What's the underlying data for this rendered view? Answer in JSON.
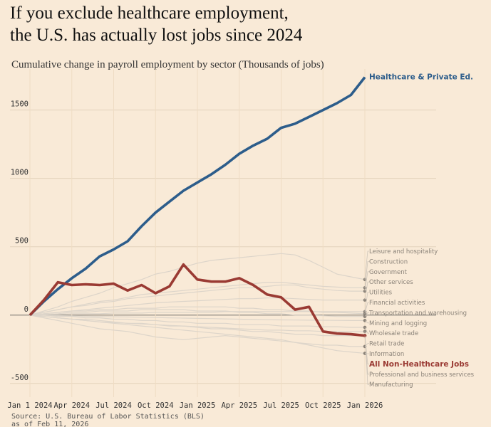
{
  "chart_data": {
    "type": "line",
    "title_lines": [
      "If you exclude healthcare employment,",
      "the U.S. has actually lost jobs since 2024"
    ],
    "subtitle": "Cumulative change in payroll employment by sector (Thousands of jobs)",
    "source_lines": [
      "Source: U.S. Bureau of Labor Statistics (BLS)",
      "as of Feb 11, 2026"
    ],
    "categories": [
      "Jan 1 2024",
      null,
      null,
      "Apr 2024",
      null,
      null,
      "Jul 2024",
      null,
      null,
      "Oct 2024",
      null,
      null,
      "Jan 2025",
      null,
      null,
      "Apr 2025",
      null,
      null,
      "Jul 2025",
      null,
      null,
      "Oct 2025",
      null,
      null,
      "Jan 2026"
    ],
    "ylim": [
      -600,
      1800
    ],
    "yticks": [
      -500,
      0,
      500,
      1000,
      1500
    ],
    "grid": true,
    "series": [
      {
        "name": "Healthcare & Private Ed.",
        "color": "#2d5d8b",
        "values": [
          0,
          100,
          190,
          270,
          340,
          430,
          480,
          540,
          650,
          750,
          830,
          910,
          970,
          1030,
          1100,
          1180,
          1240,
          1290,
          1370,
          1400,
          1450,
          1500,
          1550,
          1610,
          1740
        ]
      },
      {
        "name": "Leisure and hospitality",
        "color": "#ddd5ca",
        "values": [
          0,
          30,
          60,
          100,
          130,
          160,
          200,
          230,
          260,
          300,
          320,
          350,
          380,
          400,
          410,
          420,
          430,
          440,
          450,
          440,
          400,
          350,
          300,
          280,
          260
        ]
      },
      {
        "name": "Construction",
        "color": "#ddd5ca",
        "values": [
          0,
          20,
          40,
          60,
          80,
          100,
          110,
          130,
          150,
          160,
          170,
          180,
          190,
          200,
          210,
          220,
          230,
          240,
          240,
          230,
          220,
          210,
          205,
          200,
          200
        ]
      },
      {
        "name": "Government",
        "color": "#ddd5ca",
        "values": [
          0,
          20,
          40,
          60,
          70,
          90,
          100,
          120,
          130,
          140,
          150,
          160,
          170,
          180,
          190,
          200,
          200,
          210,
          220,
          220,
          200,
          190,
          180,
          175,
          175
        ]
      },
      {
        "name": "Other services",
        "color": "#ddd5ca",
        "values": [
          0,
          10,
          20,
          30,
          40,
          50,
          60,
          70,
          80,
          90,
          95,
          100,
          105,
          110,
          115,
          120,
          120,
          125,
          125,
          120,
          115,
          110,
          110,
          110,
          110
        ]
      },
      {
        "name": "Utilities",
        "color": "#ddd5ca",
        "values": [
          0,
          5,
          5,
          10,
          10,
          10,
          15,
          15,
          15,
          20,
          20,
          20,
          20,
          20,
          25,
          25,
          25,
          25,
          25,
          25,
          25,
          25,
          25,
          25,
          25
        ]
      },
      {
        "name": "Financial activities",
        "color": "#ddd5ca",
        "values": [
          0,
          10,
          20,
          30,
          30,
          40,
          40,
          50,
          50,
          50,
          60,
          60,
          60,
          60,
          60,
          50,
          50,
          40,
          40,
          30,
          30,
          20,
          20,
          15,
          10
        ]
      },
      {
        "name": "Transportation and warehousing",
        "color": "#ddd5ca",
        "values": [
          0,
          5,
          10,
          20,
          20,
          30,
          30,
          30,
          40,
          40,
          40,
          40,
          30,
          30,
          30,
          20,
          20,
          10,
          10,
          0,
          0,
          -5,
          -10,
          -10,
          -10
        ]
      },
      {
        "name": "Mining and logging",
        "color": "#ddd5ca",
        "values": [
          0,
          -2,
          -4,
          -6,
          -8,
          -10,
          -12,
          -14,
          -16,
          -18,
          -20,
          -22,
          -24,
          -26,
          -28,
          -30,
          -32,
          -34,
          -35,
          -36,
          -37,
          -38,
          -39,
          -40,
          -40
        ]
      },
      {
        "name": "Wholesale trade",
        "color": "#ddd5ca",
        "values": [
          0,
          0,
          -10,
          -10,
          -20,
          -20,
          -30,
          -30,
          -40,
          -40,
          -50,
          -50,
          -60,
          -60,
          -60,
          -70,
          -70,
          -70,
          -80,
          -80,
          -80,
          -85,
          -85,
          -90,
          -90
        ]
      },
      {
        "name": "Retail trade",
        "color": "#ddd5ca",
        "values": [
          0,
          -20,
          -40,
          -60,
          -80,
          -100,
          -110,
          -120,
          -140,
          -160,
          -170,
          -180,
          -170,
          -160,
          -150,
          -160,
          -170,
          -180,
          -190,
          -200,
          -210,
          -220,
          -220,
          -230,
          -230
        ]
      },
      {
        "name": "Information",
        "color": "#ddd5ca",
        "values": [
          0,
          -10,
          -20,
          -30,
          -40,
          -50,
          -60,
          -70,
          -80,
          -90,
          -100,
          -110,
          -120,
          -130,
          -140,
          -150,
          -160,
          -170,
          -180,
          -200,
          -220,
          -240,
          -260,
          -270,
          -280
        ]
      },
      {
        "name": "All Non-Healthcare Jobs",
        "color": "#9a3a33",
        "values": [
          0,
          110,
          240,
          220,
          225,
          220,
          230,
          180,
          220,
          160,
          210,
          370,
          260,
          245,
          245,
          270,
          220,
          150,
          130,
          40,
          60,
          -120,
          -135,
          -140,
          -150
        ]
      },
      {
        "name": "Professional and business services",
        "color": "#ddd5ca",
        "values": [
          0,
          -10,
          -20,
          -30,
          -30,
          -40,
          -50,
          -60,
          -60,
          -70,
          -80,
          -80,
          -90,
          -100,
          -100,
          -110,
          -120,
          -120,
          -130,
          -140,
          -140,
          -150,
          -150,
          -150,
          -150
        ]
      },
      {
        "name": "Manufacturing",
        "color": "#ddd5ca",
        "values": [
          0,
          -10,
          -20,
          -30,
          -40,
          -50,
          -55,
          -60,
          -65,
          -70,
          -75,
          -80,
          -85,
          -90,
          -95,
          -100,
          -105,
          -110,
          -110,
          -115,
          -115,
          -120,
          -120,
          -120,
          -120
        ]
      }
    ]
  }
}
